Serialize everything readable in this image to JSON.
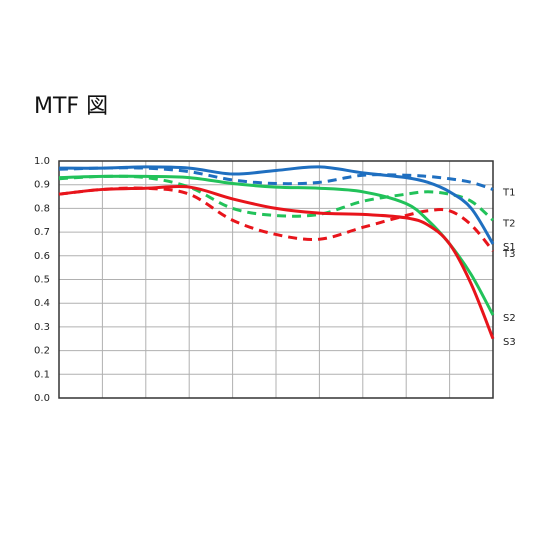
{
  "chart_data": {
    "type": "line",
    "title": "MTF 図",
    "x": [
      0,
      2,
      4,
      6,
      8,
      10,
      12,
      14,
      16,
      17,
      18,
      19,
      20
    ],
    "xlim": [
      0,
      20
    ],
    "xticks": [
      0,
      2,
      4,
      6,
      8,
      10,
      12,
      14,
      16,
      18,
      20
    ],
    "ylim": [
      0,
      1
    ],
    "yticks": [
      {
        "value": 0,
        "label": "0.0"
      },
      0.1,
      0.2,
      0.3,
      0.4,
      0.5,
      0.6,
      0.7,
      0.8,
      0.9,
      {
        "value": 1,
        "label": "1.0"
      }
    ],
    "grid": true,
    "series": [
      {
        "name": "T1",
        "color": "#1f6fc0",
        "dashed": true,
        "values": [
          0.965,
          0.97,
          0.97,
          0.955,
          0.92,
          0.905,
          0.91,
          0.94,
          0.94,
          0.935,
          0.925,
          0.91,
          0.88
        ]
      },
      {
        "name": "T2",
        "color": "#22c25a",
        "dashed": true,
        "values": [
          0.925,
          0.935,
          0.93,
          0.89,
          0.8,
          0.77,
          0.775,
          0.83,
          0.86,
          0.87,
          0.86,
          0.83,
          0.75
        ]
      },
      {
        "name": "S1",
        "color": "#1f6fc0",
        "dashed": false,
        "values": [
          0.97,
          0.97,
          0.975,
          0.97,
          0.945,
          0.96,
          0.975,
          0.95,
          0.93,
          0.91,
          0.87,
          0.8,
          0.65
        ]
      },
      {
        "name": "T3",
        "color": "#e8141b",
        "dashed": true,
        "values": [
          0.86,
          0.88,
          0.885,
          0.86,
          0.75,
          0.69,
          0.67,
          0.72,
          0.77,
          0.79,
          0.79,
          0.73,
          0.62
        ]
      },
      {
        "name": "S2",
        "color": "#22c25a",
        "dashed": false,
        "values": [
          0.93,
          0.935,
          0.935,
          0.93,
          0.905,
          0.89,
          0.885,
          0.87,
          0.82,
          0.75,
          0.65,
          0.52,
          0.35
        ]
      },
      {
        "name": "S3",
        "color": "#e8141b",
        "dashed": false,
        "values": [
          0.86,
          0.88,
          0.885,
          0.89,
          0.84,
          0.8,
          0.78,
          0.775,
          0.76,
          0.73,
          0.65,
          0.48,
          0.25
        ]
      }
    ]
  }
}
